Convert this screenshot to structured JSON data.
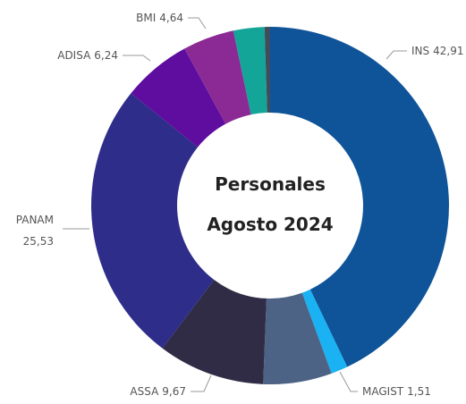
{
  "chart_data": {
    "type": "donut",
    "title": "Personales",
    "subtitle": "Agosto 2024",
    "categories": [
      "INS",
      "MAGIST",
      null,
      "ASSA",
      "PANAM",
      "ADISA",
      "BMI",
      null,
      null
    ],
    "values": [
      42.91,
      1.51,
      6.2,
      9.67,
      25.53,
      6.24,
      4.64,
      2.8,
      0.5
    ],
    "value_labels": [
      "42,91",
      "1,51",
      null,
      "9,67",
      "25,53",
      "6,24",
      "4,64",
      null,
      null
    ],
    "colors": [
      "#0f5499",
      "#1ab2f2",
      "#4c6385",
      "#302c46",
      "#2e2d8a",
      "#5f0d9f",
      "#8b2a95",
      "#13a597",
      "#3e4c5b"
    ]
  }
}
